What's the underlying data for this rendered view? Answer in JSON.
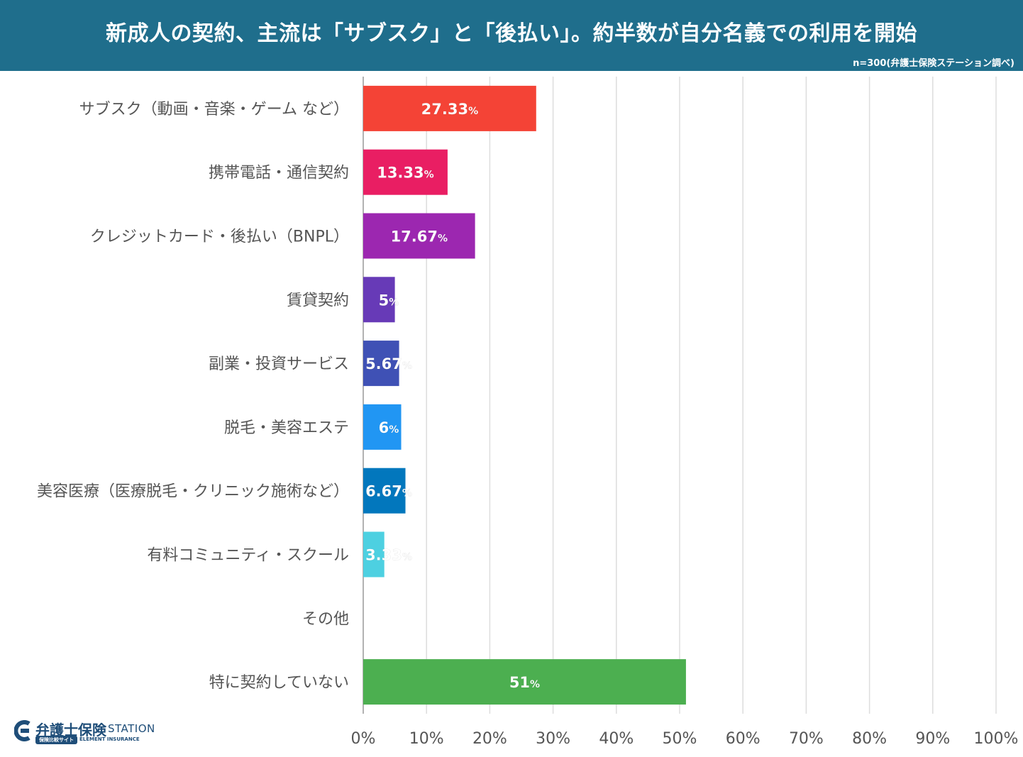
{
  "header": {
    "title": "新成人の契約、主流は「サブスク」と「後払い」。約半数が自分名義での利用を開始",
    "note": "n=300(弁護士保険ステーション調べ)"
  },
  "colors": {
    "header_bg": "#1f6e8c",
    "grid": "#dddddd",
    "axis": "#999999",
    "label_text": "#555555"
  },
  "logo": {
    "name": "弁護士保険",
    "station": "STATION",
    "badge": "保険比較サイト",
    "sub": "ELEMENT INSURANCE"
  },
  "chart_data": {
    "type": "bar",
    "orientation": "horizontal",
    "title": "新成人の契約、主流は「サブスク」と「後払い」。約半数が自分名義での利用を開始",
    "xlim": [
      0,
      100
    ],
    "xticks": [
      "0%",
      "10%",
      "20%",
      "30%",
      "40%",
      "50%",
      "60%",
      "70%",
      "80%",
      "90%",
      "100%"
    ],
    "grid": true,
    "unit": "%",
    "categories": [
      "サブスク（動画・音楽・ゲーム など）",
      "携帯電話・通信契約",
      "クレジットカード・後払い（BNPL）",
      "賃貸契約",
      "副業・投資サービス",
      "脱毛・美容エステ",
      "美容医療（医療脱毛・クリニック施術など）",
      "有料コミュニティ・スクール",
      "その他",
      "特に契約していない"
    ],
    "values": [
      27.33,
      13.33,
      17.67,
      5,
      5.67,
      6,
      6.67,
      3.33,
      0,
      51
    ],
    "labels": [
      "27.33",
      "13.33",
      "17.67",
      "5",
      "5.67",
      "6",
      "6.67",
      "3.33",
      "",
      "51"
    ],
    "colors": [
      "#f44336",
      "#e91e63",
      "#9c27b0",
      "#673ab7",
      "#3f51b5",
      "#2196f3",
      "#0277bd",
      "#4dd0e1",
      "#9e9e9e",
      "#4caf50"
    ]
  }
}
